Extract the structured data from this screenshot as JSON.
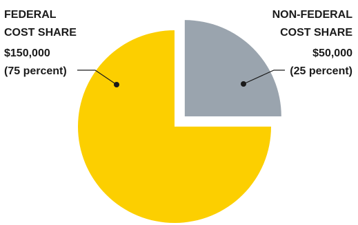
{
  "chart_data": {
    "type": "pie",
    "slices": [
      {
        "key": "federal",
        "label_lines": [
          "FEDERAL",
          "COST SHARE"
        ],
        "amount": "$150,000",
        "percent_label": "(75 percent)",
        "value": 150000,
        "percent": 75,
        "color": "#FCCF00"
      },
      {
        "key": "nonfederal",
        "label_lines": [
          "NON-FEDERAL",
          "COST SHARE"
        ],
        "amount": "$50,000",
        "percent_label": "(25 percent)",
        "value": 50000,
        "percent": 25,
        "color": "#9AA4AE",
        "exploded": true
      }
    ]
  }
}
